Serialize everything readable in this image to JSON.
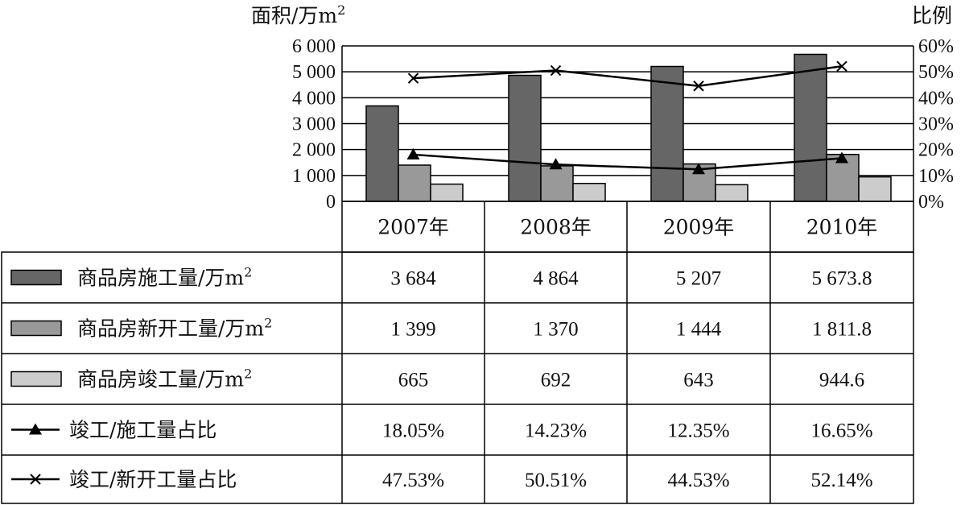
{
  "chart_data": {
    "type": "bar",
    "left_axis_title": "面积/万m",
    "left_axis_title_sup": "2",
    "right_axis_title": "比例",
    "categories": [
      "2007年",
      "2008年",
      "2009年",
      "2010年"
    ],
    "ylim_left": [
      0,
      6000
    ],
    "yticks_left": [
      "0",
      "1 000",
      "2 000",
      "3 000",
      "4 000",
      "5 000",
      "6 000"
    ],
    "ylim_right": [
      0,
      60
    ],
    "yticks_right": [
      "0%",
      "10%",
      "20%",
      "30%",
      "40%",
      "50%",
      "60%"
    ],
    "grid": true,
    "bar_series": [
      {
        "name": "商品房施工量/万m",
        "name_sup": "2",
        "color": "#666666",
        "values": [
          3684,
          4864,
          5207,
          5673.8
        ],
        "labels": [
          "3 684",
          "4 864",
          "5 207",
          "5 673.8"
        ]
      },
      {
        "name": "商品房新开工量/万m",
        "name_sup": "2",
        "color": "#999999",
        "values": [
          1399,
          1370,
          1444,
          1811.8
        ],
        "labels": [
          "1 399",
          "1 370",
          "1 444",
          "1 811.8"
        ]
      },
      {
        "name": "商品房竣工量/万m",
        "name_sup": "2",
        "color": "#cccccc",
        "values": [
          665,
          692,
          643,
          944.6
        ],
        "labels": [
          "665",
          "692",
          "643",
          "944.6"
        ]
      }
    ],
    "line_series": [
      {
        "name": "竣工/施工量占比",
        "marker": "triangle",
        "values": [
          18.05,
          14.23,
          12.35,
          16.65
        ],
        "labels": [
          "18.05%",
          "14.23%",
          "12.35%",
          "16.65%"
        ]
      },
      {
        "name": "竣工/新开工量占比",
        "marker": "x",
        "values": [
          47.53,
          50.51,
          44.53,
          52.14
        ],
        "labels": [
          "47.53%",
          "50.51%",
          "44.53%",
          "52.14%"
        ]
      }
    ]
  }
}
